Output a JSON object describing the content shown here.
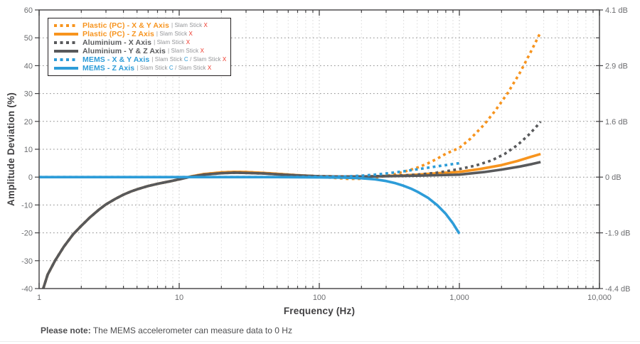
{
  "note": {
    "bold": "Please note:",
    "text": " The MEMS accelerometer can measure data to 0 Hz"
  },
  "palette": {
    "orange": "#F7941E",
    "gray": "#58595B",
    "blue": "#2D9CD8",
    "red": "#EE3124",
    "muted": "#939598",
    "axis_line": "#414042",
    "tick_text": "#6D6E71",
    "title_text": "#414042",
    "h_grid": "#8A8A8A",
    "v_grid_minor": "#D8D8D8",
    "v_grid_decade": "#C2C2C2"
  },
  "chart_data": {
    "type": "line",
    "title": "",
    "xlabel": "Frequency (Hz)",
    "ylabel": "Amplitude Deviation (%)",
    "x_scale": "log",
    "xlim": [
      1,
      10000
    ],
    "ylim": [
      -40,
      60
    ],
    "grid": true,
    "legend_position": "top-left",
    "x_ticks": [
      {
        "value": 1,
        "label": "1"
      },
      {
        "value": 10,
        "label": "10"
      },
      {
        "value": 100,
        "label": "100"
      },
      {
        "value": 1000,
        "label": "1,000"
      },
      {
        "value": 10000,
        "label": "10,000"
      }
    ],
    "y_ticks_left": [
      60,
      50,
      40,
      30,
      20,
      10,
      0,
      -10,
      -20,
      -30,
      -40
    ],
    "y_ticks_right": [
      {
        "value": 60,
        "label": "4.1 dB"
      },
      {
        "value": 40,
        "label": "2.9 dB"
      },
      {
        "value": 20,
        "label": "1.6 dB"
      },
      {
        "value": 0,
        "label": "0 dB"
      },
      {
        "value": -20,
        "label": "-1.9 dB"
      },
      {
        "value": -40,
        "label": "-4.4 dB"
      }
    ],
    "series": [
      {
        "key": "plastic-pc-x-y",
        "name": "Plastic (PC) - X & Y Axis",
        "sub": [
          {
            "text": "| Slam Stick ",
            "color": "#939598"
          },
          {
            "text": "X",
            "color": "#EE3124"
          }
        ],
        "color": "#F7941E",
        "style": "dotted",
        "points": [
          [
            1.07,
            -40
          ],
          [
            1.15,
            -35
          ],
          [
            1.3,
            -30
          ],
          [
            1.5,
            -25
          ],
          [
            1.75,
            -20.5
          ],
          [
            2,
            -17.5
          ],
          [
            2.3,
            -14.5
          ],
          [
            2.7,
            -11.5
          ],
          [
            3,
            -9.8
          ],
          [
            3.5,
            -7.8
          ],
          [
            4,
            -6.3
          ],
          [
            4.5,
            -5.2
          ],
          [
            5,
            -4.4
          ],
          [
            6,
            -3.2
          ],
          [
            7,
            -2.4
          ],
          [
            8,
            -1.8
          ],
          [
            9,
            -1.3
          ],
          [
            10,
            -0.8
          ],
          [
            12,
            0.2
          ],
          [
            15,
            1.1
          ],
          [
            20,
            1.7
          ],
          [
            25,
            1.9
          ],
          [
            30,
            1.8
          ],
          [
            40,
            1.5
          ],
          [
            50,
            1.2
          ],
          [
            70,
            0.7
          ],
          [
            100,
            0.1
          ],
          [
            130,
            -0.3
          ],
          [
            160,
            -0.6
          ],
          [
            200,
            -0.6
          ],
          [
            250,
            -0.2
          ],
          [
            300,
            0.4
          ],
          [
            350,
            1.1
          ],
          [
            400,
            1.9
          ],
          [
            500,
            3.4
          ],
          [
            600,
            5.0
          ],
          [
            700,
            6.7
          ],
          [
            800,
            8.4
          ],
          [
            900,
            9.5
          ],
          [
            1000,
            10.5
          ],
          [
            1200,
            13.8
          ],
          [
            1500,
            18.8
          ],
          [
            1800,
            23.8
          ],
          [
            2200,
            30
          ],
          [
            2700,
            37.4
          ],
          [
            3200,
            44.5
          ],
          [
            3800,
            52
          ]
        ]
      },
      {
        "key": "plastic-pc-z",
        "name": "Plastic (PC) - Z Axis",
        "sub": [
          {
            "text": "| Slam Stick ",
            "color": "#939598"
          },
          {
            "text": "X",
            "color": "#EE3124"
          }
        ],
        "color": "#F7941E",
        "style": "solid",
        "points": [
          [
            1.07,
            -40
          ],
          [
            1.15,
            -35
          ],
          [
            1.3,
            -30
          ],
          [
            1.5,
            -25
          ],
          [
            1.75,
            -20.5
          ],
          [
            2,
            -17.5
          ],
          [
            2.3,
            -14.5
          ],
          [
            2.7,
            -11.5
          ],
          [
            3,
            -9.8
          ],
          [
            3.5,
            -7.8
          ],
          [
            4,
            -6.3
          ],
          [
            4.5,
            -5.2
          ],
          [
            5,
            -4.4
          ],
          [
            6,
            -3.2
          ],
          [
            7,
            -2.4
          ],
          [
            8,
            -1.8
          ],
          [
            9,
            -1.3
          ],
          [
            10,
            -0.8
          ],
          [
            12,
            0.2
          ],
          [
            15,
            1.1
          ],
          [
            20,
            1.7
          ],
          [
            25,
            1.9
          ],
          [
            30,
            1.8
          ],
          [
            40,
            1.5
          ],
          [
            50,
            1.2
          ],
          [
            70,
            0.7
          ],
          [
            100,
            0.3
          ],
          [
            150,
            0.2
          ],
          [
            200,
            0.2
          ],
          [
            300,
            0.4
          ],
          [
            400,
            0.6
          ],
          [
            500,
            0.9
          ],
          [
            700,
            1.4
          ],
          [
            1000,
            1.9
          ],
          [
            1400,
            2.9
          ],
          [
            2000,
            4.3
          ],
          [
            2600,
            5.8
          ],
          [
            3200,
            7.2
          ],
          [
            3800,
            8.3
          ]
        ]
      },
      {
        "key": "aluminium-x",
        "name": "Aluminium - X Axis",
        "sub": [
          {
            "text": "| Slam Stick ",
            "color": "#939598"
          },
          {
            "text": "X",
            "color": "#EE3124"
          }
        ],
        "color": "#58595B",
        "style": "dotted",
        "points": [
          [
            1.07,
            -40
          ],
          [
            1.15,
            -35
          ],
          [
            1.3,
            -30
          ],
          [
            1.5,
            -25
          ],
          [
            1.75,
            -20.5
          ],
          [
            2,
            -17.5
          ],
          [
            2.3,
            -14.5
          ],
          [
            2.7,
            -11.5
          ],
          [
            3,
            -9.8
          ],
          [
            3.5,
            -7.8
          ],
          [
            4,
            -6.3
          ],
          [
            4.5,
            -5.2
          ],
          [
            5,
            -4.4
          ],
          [
            6,
            -3.2
          ],
          [
            7,
            -2.4
          ],
          [
            8,
            -1.8
          ],
          [
            9,
            -1.3
          ],
          [
            10,
            -0.8
          ],
          [
            12,
            0.1
          ],
          [
            15,
            0.9
          ],
          [
            20,
            1.4
          ],
          [
            25,
            1.6
          ],
          [
            30,
            1.5
          ],
          [
            40,
            1.3
          ],
          [
            50,
            1.0
          ],
          [
            70,
            0.6
          ],
          [
            100,
            0.3
          ],
          [
            150,
            0.2
          ],
          [
            200,
            0.2
          ],
          [
            300,
            0.4
          ],
          [
            400,
            0.6
          ],
          [
            500,
            0.9
          ],
          [
            700,
            1.6
          ],
          [
            1000,
            2.9
          ],
          [
            1300,
            4.1
          ],
          [
            1700,
            6.0
          ],
          [
            2100,
            8.3
          ],
          [
            2600,
            11.5
          ],
          [
            3100,
            15
          ],
          [
            3500,
            17.8
          ],
          [
            3800,
            19.9
          ]
        ]
      },
      {
        "key": "aluminium-y-z",
        "name": "Aluminium - Y & Z Axis",
        "sub": [
          {
            "text": "| Slam Stick ",
            "color": "#939598"
          },
          {
            "text": "X",
            "color": "#EE3124"
          }
        ],
        "color": "#58595B",
        "style": "solid",
        "points": [
          [
            1.07,
            -40
          ],
          [
            1.15,
            -35
          ],
          [
            1.3,
            -30
          ],
          [
            1.5,
            -25
          ],
          [
            1.75,
            -20.5
          ],
          [
            2,
            -17.5
          ],
          [
            2.3,
            -14.5
          ],
          [
            2.7,
            -11.5
          ],
          [
            3,
            -9.8
          ],
          [
            3.5,
            -7.8
          ],
          [
            4,
            -6.3
          ],
          [
            4.5,
            -5.2
          ],
          [
            5,
            -4.4
          ],
          [
            6,
            -3.2
          ],
          [
            7,
            -2.4
          ],
          [
            8,
            -1.8
          ],
          [
            9,
            -1.3
          ],
          [
            10,
            -0.8
          ],
          [
            12,
            0.1
          ],
          [
            15,
            0.9
          ],
          [
            20,
            1.4
          ],
          [
            25,
            1.6
          ],
          [
            30,
            1.5
          ],
          [
            40,
            1.3
          ],
          [
            50,
            1.0
          ],
          [
            70,
            0.6
          ],
          [
            100,
            0.3
          ],
          [
            150,
            0.2
          ],
          [
            200,
            0.2
          ],
          [
            300,
            0.3
          ],
          [
            500,
            0.5
          ],
          [
            700,
            0.7
          ],
          [
            1000,
            0.9
          ],
          [
            1500,
            1.8
          ],
          [
            2000,
            2.7
          ],
          [
            2700,
            3.8
          ],
          [
            3300,
            4.7
          ],
          [
            3800,
            5.4
          ]
        ]
      },
      {
        "key": "mems-x-y",
        "name": "MEMS - X & Y Axis",
        "sub": [
          {
            "text": "| Slam Stick ",
            "color": "#939598"
          },
          {
            "text": "C",
            "color": "#2D9CD8"
          },
          {
            "text": " / Slam Stick ",
            "color": "#939598"
          },
          {
            "text": "X",
            "color": "#EE3124"
          }
        ],
        "color": "#2D9CD8",
        "style": "dotted",
        "points": [
          [
            1,
            0
          ],
          [
            50,
            0
          ],
          [
            100,
            0.1
          ],
          [
            150,
            0.2
          ],
          [
            200,
            0.5
          ],
          [
            250,
            0.9
          ],
          [
            300,
            1.3
          ],
          [
            350,
            1.7
          ],
          [
            400,
            2.1
          ],
          [
            500,
            2.8
          ],
          [
            600,
            3.4
          ],
          [
            700,
            3.9
          ],
          [
            800,
            4.3
          ],
          [
            900,
            4.7
          ],
          [
            1000,
            5.0
          ]
        ]
      },
      {
        "key": "mems-z",
        "name": "MEMS - Z Axis",
        "sub": [
          {
            "text": "| Slam Stick ",
            "color": "#939598"
          },
          {
            "text": "C",
            "color": "#2D9CD8"
          },
          {
            "text": " / Slam Stick ",
            "color": "#939598"
          },
          {
            "text": "X",
            "color": "#EE3124"
          }
        ],
        "color": "#2D9CD8",
        "style": "solid",
        "points": [
          [
            1,
            0
          ],
          [
            50,
            0
          ],
          [
            100,
            -0.1
          ],
          [
            150,
            -0.2
          ],
          [
            200,
            -0.4
          ],
          [
            250,
            -0.8
          ],
          [
            300,
            -1.4
          ],
          [
            350,
            -2.2
          ],
          [
            400,
            -3.1
          ],
          [
            450,
            -4.1
          ],
          [
            500,
            -5.2
          ],
          [
            600,
            -7.5
          ],
          [
            700,
            -10.2
          ],
          [
            800,
            -13.2
          ],
          [
            900,
            -16.6
          ],
          [
            1000,
            -20.3
          ]
        ]
      }
    ]
  }
}
